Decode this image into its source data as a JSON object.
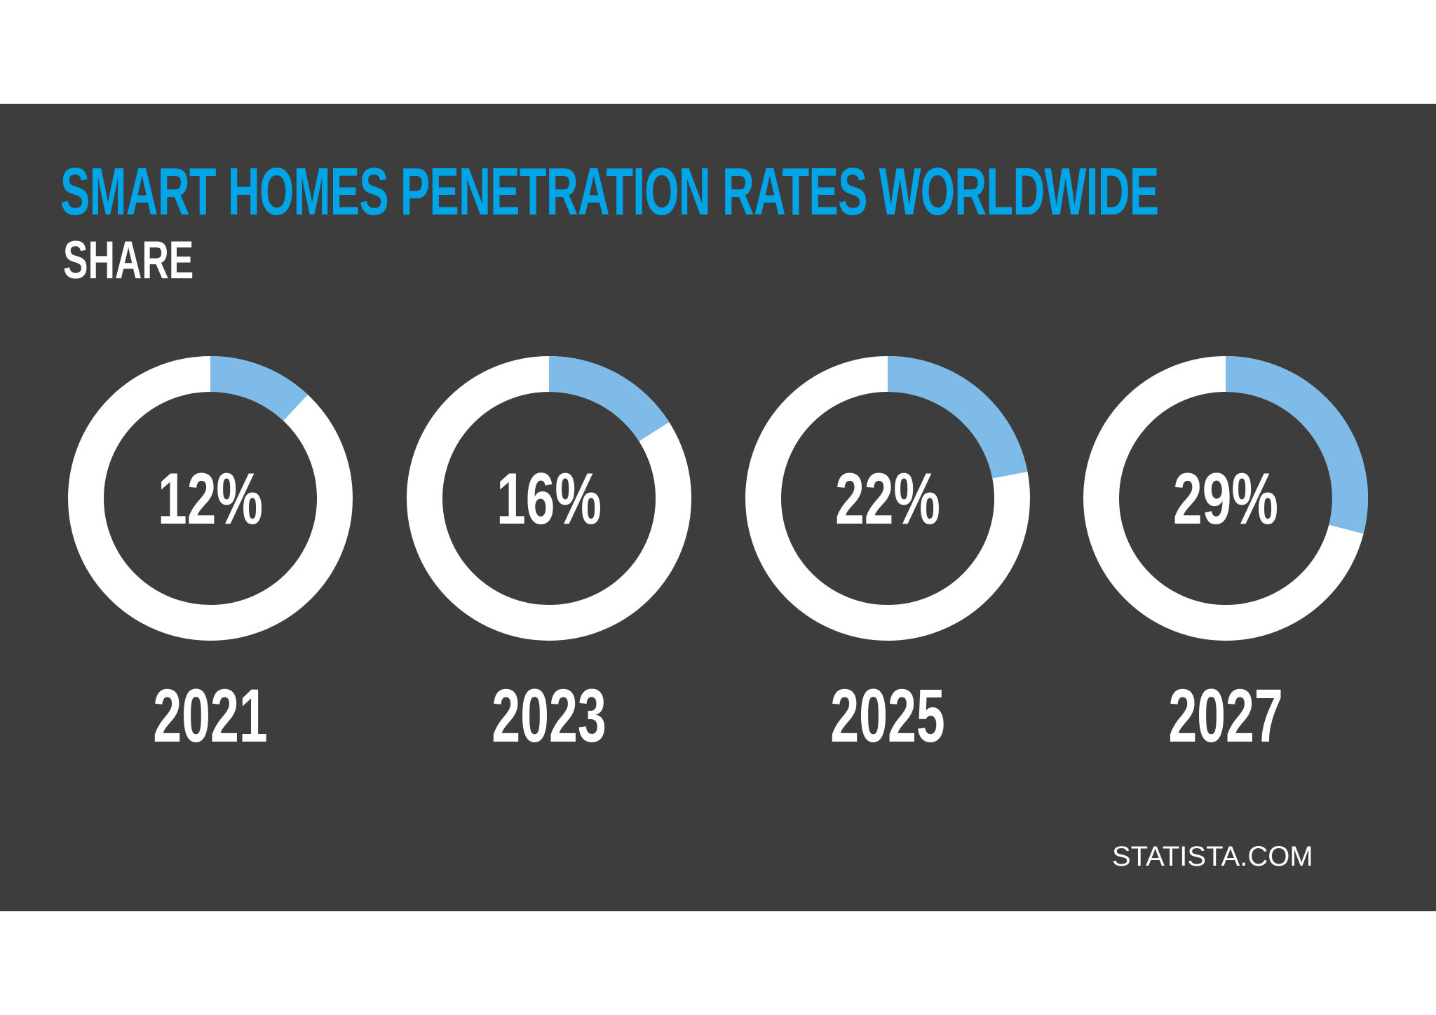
{
  "title": "SMART HOMES PENETRATION RATES WORLDWIDE",
  "subtitle": "SHARE",
  "source": "STATISTA.COM",
  "colors": {
    "background": "#3d3d3d",
    "title": "#00a5e8",
    "ring": "#ffffff",
    "segment": "#7fbbe8",
    "text": "#ffffff"
  },
  "chart_data": {
    "type": "pie",
    "variant": "donut",
    "categories": [
      "2021",
      "2023",
      "2025",
      "2027"
    ],
    "values": [
      12,
      16,
      22,
      29
    ],
    "value_labels": [
      "12%",
      "16%",
      "22%",
      "29%"
    ],
    "unit": "%"
  }
}
